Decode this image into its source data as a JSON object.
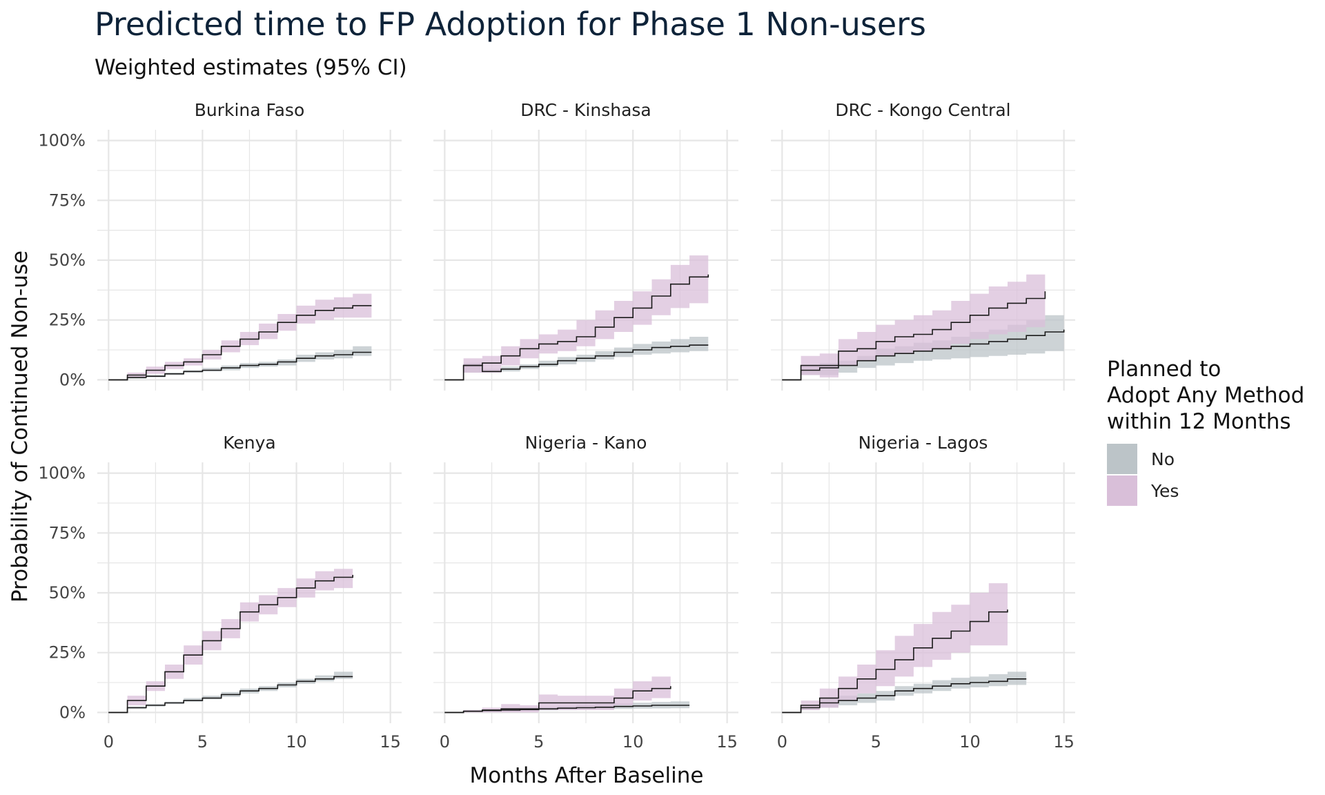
{
  "chart_data": {
    "type": "line",
    "title": "Predicted time to FP Adoption for Phase 1 Non-users",
    "subtitle": "Weighted estimates (95% CI)",
    "xlabel": "Months After Baseline",
    "ylabel": "Probability of Continued Non-use",
    "xlim": [
      0,
      15
    ],
    "ylim": [
      0,
      1
    ],
    "x_ticks": [
      "0",
      "5",
      "10",
      "15"
    ],
    "y_ticks": [
      "0%",
      "25%",
      "50%",
      "75%",
      "100%"
    ],
    "grid": true,
    "legend": {
      "title_lines": [
        "Planned to",
        "Adopt Any Method",
        "within 12 Months"
      ],
      "position": "right",
      "entries": [
        {
          "name": "No",
          "color": "#bcc4c8"
        },
        {
          "name": "Yes",
          "color": "#d9bfd9"
        }
      ]
    },
    "colors": {
      "line": "#1a1a1a",
      "no_band": "#bcc4c8",
      "yes_band": "#d9bfd9",
      "grid": "#e6e6e6"
    },
    "panels": [
      {
        "name": "Burkina Faso",
        "series": [
          {
            "name": "No",
            "x": [
              0,
              1,
              2,
              3,
              4,
              5,
              6,
              7,
              8,
              9,
              10,
              11,
              12,
              13,
              14
            ],
            "y": [
              0,
              0.01,
              0.015,
              0.025,
              0.035,
              0.04,
              0.05,
              0.06,
              0.065,
              0.075,
              0.09,
              0.1,
              0.105,
              0.115,
              0.115
            ],
            "lower": [
              0,
              0.005,
              0.01,
              0.02,
              0.03,
              0.035,
              0.04,
              0.05,
              0.055,
              0.06,
              0.075,
              0.085,
              0.09,
              0.1,
              0.1
            ],
            "upper": [
              0,
              0.015,
              0.02,
              0.03,
              0.04,
              0.05,
              0.06,
              0.07,
              0.075,
              0.085,
              0.105,
              0.115,
              0.125,
              0.14,
              0.14
            ]
          },
          {
            "name": "Yes",
            "x": [
              0,
              1,
              2,
              3,
              4,
              5,
              6,
              7,
              8,
              9,
              10,
              11,
              12,
              13,
              14
            ],
            "y": [
              0,
              0.02,
              0.04,
              0.06,
              0.075,
              0.105,
              0.14,
              0.17,
              0.2,
              0.24,
              0.27,
              0.29,
              0.3,
              0.31,
              0.31
            ],
            "lower": [
              0,
              0.01,
              0.025,
              0.045,
              0.06,
              0.085,
              0.115,
              0.145,
              0.17,
              0.205,
              0.235,
              0.25,
              0.26,
              0.26,
              0.26
            ],
            "upper": [
              0,
              0.03,
              0.055,
              0.075,
              0.09,
              0.125,
              0.165,
              0.2,
              0.235,
              0.275,
              0.31,
              0.335,
              0.345,
              0.36,
              0.36
            ]
          }
        ]
      },
      {
        "name": "DRC - Kinshasa",
        "series": [
          {
            "name": "No",
            "x": [
              0,
              1,
              2,
              3,
              4,
              5,
              6,
              7,
              8,
              9,
              10,
              11,
              12,
              13,
              14
            ],
            "y": [
              0,
              0.06,
              0.035,
              0.045,
              0.055,
              0.065,
              0.08,
              0.09,
              0.1,
              0.115,
              0.125,
              0.135,
              0.14,
              0.145,
              0.145
            ],
            "lower": [
              0,
              0.03,
              0.03,
              0.035,
              0.045,
              0.055,
              0.065,
              0.075,
              0.085,
              0.095,
              0.105,
              0.11,
              0.115,
              0.12,
              0.12
            ],
            "upper": [
              0,
              0.07,
              0.045,
              0.055,
              0.065,
              0.08,
              0.095,
              0.105,
              0.12,
              0.135,
              0.15,
              0.16,
              0.17,
              0.18,
              0.18
            ]
          },
          {
            "name": "Yes",
            "x": [
              0,
              1,
              2,
              3,
              4,
              5,
              6,
              7,
              8,
              9,
              10,
              11,
              12,
              13,
              14
            ],
            "y": [
              0,
              0.06,
              0.07,
              0.1,
              0.13,
              0.15,
              0.16,
              0.18,
              0.22,
              0.26,
              0.3,
              0.35,
              0.4,
              0.43,
              0.44
            ],
            "lower": [
              0,
              0.03,
              0.03,
              0.06,
              0.09,
              0.11,
              0.12,
              0.14,
              0.17,
              0.2,
              0.23,
              0.27,
              0.3,
              0.32,
              0.32
            ],
            "upper": [
              0,
              0.09,
              0.1,
              0.14,
              0.17,
              0.19,
              0.21,
              0.25,
              0.29,
              0.33,
              0.37,
              0.42,
              0.48,
              0.52,
              0.54
            ]
          }
        ]
      },
      {
        "name": "DRC - Kongo Central",
        "series": [
          {
            "name": "No",
            "x": [
              0,
              1,
              2,
              3,
              4,
              5,
              6,
              7,
              8,
              9,
              10,
              11,
              12,
              13,
              14,
              15
            ],
            "y": [
              0,
              0.04,
              0.05,
              0.06,
              0.08,
              0.1,
              0.11,
              0.12,
              0.13,
              0.14,
              0.15,
              0.16,
              0.17,
              0.185,
              0.2,
              0.21
            ],
            "lower": [
              0,
              0.02,
              0.02,
              0.03,
              0.05,
              0.06,
              0.07,
              0.08,
              0.085,
              0.09,
              0.095,
              0.1,
              0.105,
              0.11,
              0.12,
              0.13
            ],
            "upper": [
              0,
              0.06,
              0.07,
              0.08,
              0.1,
              0.13,
              0.14,
              0.155,
              0.165,
              0.18,
              0.2,
              0.21,
              0.23,
              0.25,
              0.27,
              0.285
            ]
          },
          {
            "name": "Yes",
            "x": [
              0,
              1,
              2,
              3,
              4,
              5,
              6,
              7,
              8,
              9,
              10,
              11,
              12,
              13,
              14
            ],
            "y": [
              0,
              0.06,
              0.06,
              0.12,
              0.13,
              0.16,
              0.18,
              0.19,
              0.21,
              0.24,
              0.27,
              0.3,
              0.32,
              0.34,
              0.37
            ],
            "lower": [
              0,
              0.02,
              0.01,
              0.06,
              0.08,
              0.1,
              0.11,
              0.12,
              0.13,
              0.15,
              0.17,
              0.19,
              0.2,
              0.22,
              0.24
            ],
            "upper": [
              0,
              0.1,
              0.11,
              0.17,
              0.2,
              0.23,
              0.25,
              0.27,
              0.29,
              0.33,
              0.36,
              0.39,
              0.41,
              0.44,
              0.47
            ]
          }
        ]
      },
      {
        "name": "Kenya",
        "series": [
          {
            "name": "No",
            "x": [
              0,
              1,
              2,
              3,
              4,
              5,
              6,
              7,
              8,
              9,
              10,
              11,
              12,
              13
            ],
            "y": [
              0,
              0.02,
              0.03,
              0.04,
              0.05,
              0.06,
              0.075,
              0.09,
              0.1,
              0.115,
              0.13,
              0.14,
              0.15,
              0.15
            ],
            "lower": [
              0,
              0.015,
              0.025,
              0.035,
              0.045,
              0.055,
              0.065,
              0.08,
              0.09,
              0.105,
              0.12,
              0.13,
              0.14,
              0.14
            ],
            "upper": [
              0,
              0.025,
              0.035,
              0.045,
              0.06,
              0.07,
              0.085,
              0.1,
              0.11,
              0.125,
              0.14,
              0.155,
              0.17,
              0.17
            ]
          },
          {
            "name": "Yes",
            "x": [
              0,
              1,
              2,
              3,
              4,
              5,
              6,
              7,
              8,
              9,
              10,
              11,
              12,
              13
            ],
            "y": [
              0,
              0.05,
              0.11,
              0.17,
              0.24,
              0.3,
              0.35,
              0.42,
              0.45,
              0.48,
              0.52,
              0.55,
              0.565,
              0.575
            ],
            "lower": [
              0,
              0.03,
              0.09,
              0.14,
              0.2,
              0.26,
              0.31,
              0.38,
              0.41,
              0.44,
              0.48,
              0.51,
              0.52,
              0.52
            ],
            "upper": [
              0,
              0.07,
              0.13,
              0.2,
              0.28,
              0.34,
              0.39,
              0.46,
              0.49,
              0.52,
              0.56,
              0.59,
              0.6,
              0.6
            ]
          }
        ]
      },
      {
        "name": "Nigeria - Kano",
        "series": [
          {
            "name": "No",
            "x": [
              0,
              1,
              2,
              3,
              4,
              5,
              6,
              7,
              8,
              9,
              10,
              11,
              12,
              13
            ],
            "y": [
              0,
              0.005,
              0.008,
              0.01,
              0.012,
              0.015,
              0.018,
              0.02,
              0.022,
              0.025,
              0.027,
              0.03,
              0.03,
              0.03
            ],
            "lower": [
              0,
              0.002,
              0.003,
              0.005,
              0.007,
              0.008,
              0.01,
              0.012,
              0.014,
              0.015,
              0.016,
              0.017,
              0.018,
              0.018
            ],
            "upper": [
              0,
              0.01,
              0.013,
              0.016,
              0.02,
              0.023,
              0.027,
              0.031,
              0.035,
              0.038,
              0.041,
              0.044,
              0.046,
              0.046
            ]
          },
          {
            "name": "Yes",
            "x": [
              0,
              1,
              2,
              3,
              4,
              5,
              6,
              7,
              8,
              9,
              10,
              11,
              12
            ],
            "y": [
              0,
              0.005,
              0.01,
              0.015,
              0.015,
              0.04,
              0.04,
              0.04,
              0.04,
              0.06,
              0.09,
              0.1,
              0.11
            ],
            "lower": [
              0,
              0.0,
              0.0,
              0.0,
              0.0,
              0.01,
              0.01,
              0.01,
              0.01,
              0.03,
              0.05,
              0.06,
              0.07
            ],
            "upper": [
              0,
              0.01,
              0.02,
              0.035,
              0.03,
              0.075,
              0.07,
              0.07,
              0.07,
              0.1,
              0.13,
              0.15,
              0.16
            ]
          }
        ]
      },
      {
        "name": "Nigeria - Lagos",
        "series": [
          {
            "name": "No",
            "x": [
              0,
              1,
              2,
              3,
              4,
              5,
              6,
              7,
              8,
              9,
              10,
              11,
              12,
              13
            ],
            "y": [
              0,
              0.02,
              0.04,
              0.05,
              0.06,
              0.07,
              0.09,
              0.1,
              0.11,
              0.12,
              0.125,
              0.13,
              0.14,
              0.14
            ],
            "lower": [
              0,
              0.01,
              0.02,
              0.03,
              0.04,
              0.05,
              0.07,
              0.08,
              0.09,
              0.1,
              0.105,
              0.11,
              0.115,
              0.115
            ],
            "upper": [
              0,
              0.03,
              0.06,
              0.07,
              0.08,
              0.09,
              0.11,
              0.12,
              0.135,
              0.145,
              0.15,
              0.16,
              0.17,
              0.17
            ]
          },
          {
            "name": "Yes",
            "x": [
              0,
              1,
              2,
              3,
              4,
              5,
              6,
              7,
              8,
              9,
              10,
              11,
              12
            ],
            "y": [
              0,
              0.03,
              0.06,
              0.1,
              0.14,
              0.18,
              0.22,
              0.27,
              0.31,
              0.34,
              0.38,
              0.42,
              0.43
            ],
            "lower": [
              0,
              0.01,
              0.02,
              0.05,
              0.08,
              0.11,
              0.15,
              0.19,
              0.22,
              0.25,
              0.28,
              0.28,
              0.28
            ],
            "upper": [
              0,
              0.05,
              0.1,
              0.15,
              0.2,
              0.26,
              0.32,
              0.37,
              0.42,
              0.45,
              0.5,
              0.54,
              0.54
            ]
          }
        ]
      }
    ]
  }
}
